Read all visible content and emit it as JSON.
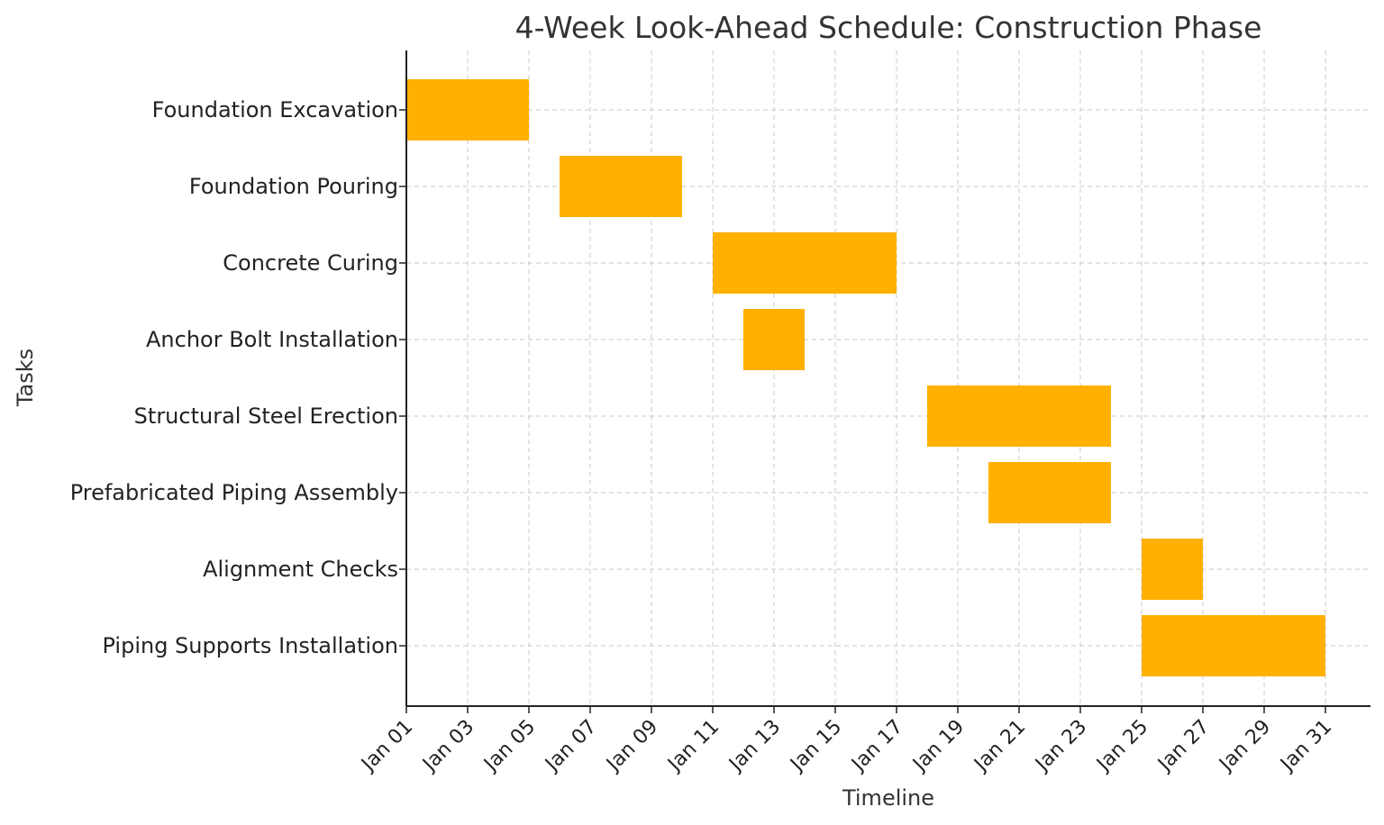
{
  "chart_data": {
    "type": "bar",
    "subtype": "gantt",
    "title": "4-Week Look-Ahead Schedule: Construction Phase",
    "xlabel": "Timeline",
    "ylabel": "Tasks",
    "x_range": [
      "2024-01-01",
      "2024-01-31"
    ],
    "x_ticks": [
      "Jan 01",
      "Jan 03",
      "Jan 05",
      "Jan 07",
      "Jan 09",
      "Jan 11",
      "Jan 13",
      "Jan 15",
      "Jan 17",
      "Jan 19",
      "Jan 21",
      "Jan 23",
      "Jan 25",
      "Jan 27",
      "Jan 29",
      "Jan 31"
    ],
    "grid": true,
    "bar_color": "#FFB000",
    "tasks": [
      {
        "name": "Foundation Excavation",
        "start": "2024-01-01",
        "end": "2024-01-05"
      },
      {
        "name": "Foundation Pouring",
        "start": "2024-01-06",
        "end": "2024-01-10"
      },
      {
        "name": "Concrete Curing",
        "start": "2024-01-11",
        "end": "2024-01-17"
      },
      {
        "name": "Anchor Bolt Installation",
        "start": "2024-01-12",
        "end": "2024-01-14"
      },
      {
        "name": "Structural Steel Erection",
        "start": "2024-01-18",
        "end": "2024-01-24"
      },
      {
        "name": "Prefabricated Piping Assembly",
        "start": "2024-01-20",
        "end": "2024-01-24"
      },
      {
        "name": "Alignment Checks",
        "start": "2024-01-25",
        "end": "2024-01-27"
      },
      {
        "name": "Piping Supports Installation",
        "start": "2024-01-25",
        "end": "2024-01-31"
      }
    ]
  }
}
